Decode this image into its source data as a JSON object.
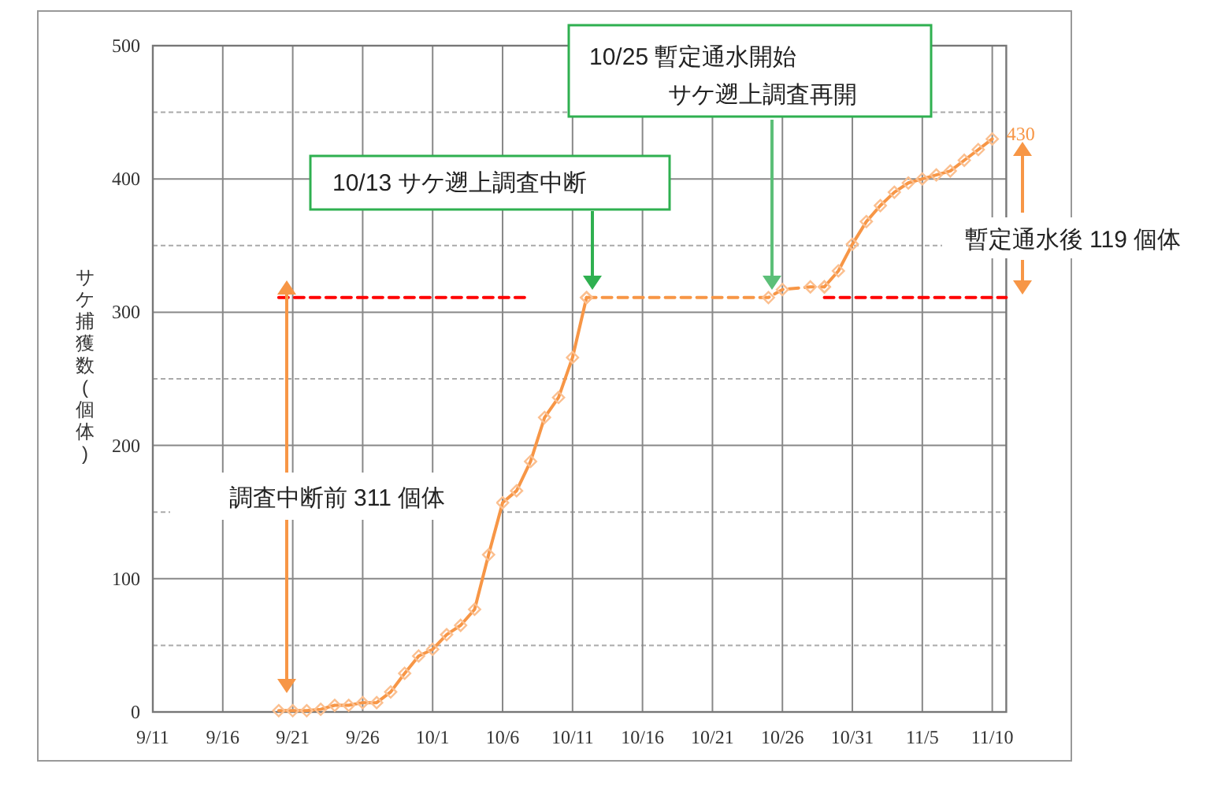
{
  "chart_data": {
    "type": "line",
    "ylabel": "サケ捕獲数(個体)",
    "xlim": [
      "--09-11",
      "--11-11"
    ],
    "ylim": [
      0,
      500
    ],
    "xticks": [
      {
        "value": "--09-11",
        "label": "9/11"
      },
      {
        "value": "--09-16",
        "label": "9/16"
      },
      {
        "value": "--09-21",
        "label": "9/21"
      },
      {
        "value": "--09-26",
        "label": "9/26"
      },
      {
        "value": "--10-01",
        "label": "10/1"
      },
      {
        "value": "--10-06",
        "label": "10/6"
      },
      {
        "value": "--10-11",
        "label": "10/11"
      },
      {
        "value": "--10-16",
        "label": "10/16"
      },
      {
        "value": "--10-21",
        "label": "10/21"
      },
      {
        "value": "--10-26",
        "label": "10/26"
      },
      {
        "value": "--10-31",
        "label": "10/31"
      },
      {
        "value": "--11-05",
        "label": "11/5"
      },
      {
        "value": "--11-10",
        "label": "11/10"
      }
    ],
    "yticks": [
      0,
      {
        "value": 50,
        "label": null
      },
      100,
      {
        "value": 150,
        "label": null
      },
      200,
      {
        "value": 250,
        "label": null
      },
      300,
      {
        "value": 350,
        "label": null
      },
      400,
      {
        "value": 450,
        "label": null
      },
      500
    ],
    "grid": true,
    "marker": "diamond",
    "series": [
      {
        "color": "#f79646",
        "x": [
          "--09-20",
          "--09-21",
          "--09-22",
          "--09-23",
          "--09-24",
          "--09-25",
          "--09-26",
          "--09-27",
          "--09-28",
          "--09-29",
          "--09-30",
          "--10-01",
          "--10-02",
          "--10-03",
          "--10-04",
          "--10-05",
          "--10-06",
          "--10-07",
          "--10-08",
          "--10-09",
          "--10-10",
          "--10-11",
          "--10-12"
        ],
        "values": [
          1,
          1,
          1,
          2,
          5,
          5,
          7,
          7,
          15,
          29,
          42,
          47,
          58,
          65,
          77,
          118,
          157,
          166,
          188,
          221,
          236,
          266,
          311
        ]
      },
      {
        "color": "#f79646",
        "line_style": "dashed",
        "x": [
          "--10-12",
          "--10-25",
          "--10-26",
          "--10-28",
          "--10-29"
        ],
        "values": [
          311,
          311,
          317,
          319,
          319
        ]
      },
      {
        "color": "#f79646",
        "x": [
          "--10-29",
          "--10-30",
          "--10-31",
          "--11-01",
          "--11-02",
          "--11-03",
          "--11-04",
          "--11-05",
          "--11-06",
          "--11-07",
          "--11-08",
          "--11-09",
          "--11-10"
        ],
        "values": [
          319,
          331,
          351,
          368,
          380,
          390,
          397,
          400,
          403,
          406,
          414,
          422,
          430
        ],
        "value_labels": [
          null,
          null,
          null,
          null,
          null,
          null,
          null,
          null,
          null,
          null,
          null,
          null,
          "430"
        ]
      },
      {
        "type": "line",
        "color": "#ff0000",
        "line_style": "dashed",
        "marker": "none",
        "x": [
          "--09-20",
          "--10-08"
        ],
        "values": [
          311,
          311
        ]
      },
      {
        "type": "line",
        "color": "#ff0000",
        "line_style": "dashed",
        "marker": "none",
        "x": [
          "--10-29",
          "--11-11"
        ],
        "values": [
          311,
          311
        ]
      }
    ],
    "annotations": [
      "10/13 サケ遡上調査中断",
      "10/25 暫定通水開始",
      "サケ遡上調査再開",
      "調査中断前 311 個体",
      "暫定通水後 119 個体"
    ]
  }
}
